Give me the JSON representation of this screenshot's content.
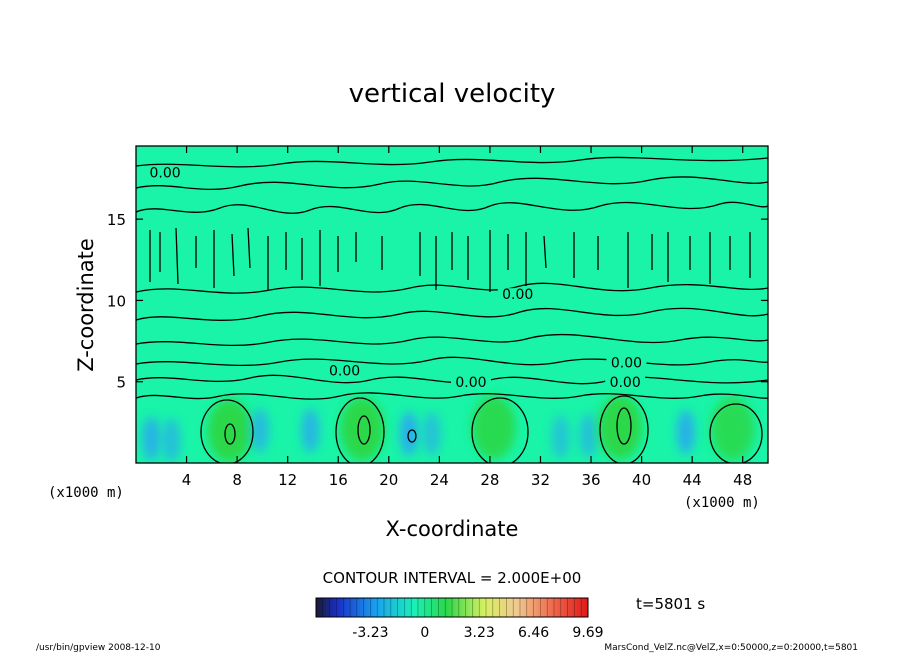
{
  "chart_data": {
    "type": "heatmap",
    "title": "vertical velocity",
    "xlabel": "X-coordinate",
    "ylabel": "Z-coordinate",
    "x_unit_left": "(x1000 m)",
    "x_unit_right": "(x1000 m)",
    "xlim": [
      0,
      50
    ],
    "ylim": [
      0,
      19.5
    ],
    "x_ticks": [
      "4",
      "8",
      "12",
      "16",
      "20",
      "24",
      "28",
      "32",
      "36",
      "40",
      "44",
      "48"
    ],
    "x_tick_values": [
      4,
      8,
      12,
      16,
      20,
      24,
      28,
      32,
      36,
      40,
      44,
      48
    ],
    "y_ticks": [
      "5",
      "10",
      "15"
    ],
    "y_tick_values": [
      5,
      10,
      15
    ],
    "contour_labels": [
      {
        "text": "0.00",
        "x": 2.3,
        "z": 17.7
      },
      {
        "text": "0.00",
        "x": 30.2,
        "z": 10.2
      },
      {
        "text": "0.00",
        "x": 16.5,
        "z": 5.5
      },
      {
        "text": "0.00",
        "x": 26.5,
        "z": 4.8
      },
      {
        "text": "0.00",
        "x": 38.8,
        "z": 6.0
      },
      {
        "text": "0.00",
        "x": 38.7,
        "z": 4.8
      }
    ],
    "cells": [
      {
        "x": 1.2,
        "z": 1.5,
        "v": -1.8
      },
      {
        "x": 2.8,
        "z": 1.4,
        "v": -1.2
      },
      {
        "x": 7.4,
        "z": 2.0,
        "v": 2.6
      },
      {
        "x": 9.8,
        "z": 2.0,
        "v": -1.4
      },
      {
        "x": 13.8,
        "z": 2.0,
        "v": -1.6
      },
      {
        "x": 17.9,
        "z": 2.1,
        "v": 2.4
      },
      {
        "x": 21.6,
        "z": 1.8,
        "v": -2.0
      },
      {
        "x": 23.4,
        "z": 1.8,
        "v": -1.0
      },
      {
        "x": 28.3,
        "z": 2.2,
        "v": 2.0
      },
      {
        "x": 33.6,
        "z": 1.6,
        "v": -0.9
      },
      {
        "x": 35.8,
        "z": 1.7,
        "v": -1.1
      },
      {
        "x": 38.3,
        "z": 2.2,
        "v": 2.6
      },
      {
        "x": 43.5,
        "z": 1.9,
        "v": -1.9
      },
      {
        "x": 47.2,
        "z": 2.1,
        "v": 1.8
      }
    ],
    "contour_interval_text": "CONTOUR INTERVAL = 2.000E+00",
    "colorbar": {
      "ticks": [
        "-3.23",
        "0",
        "3.23",
        "6.46",
        "9.69"
      ],
      "tick_values": [
        -3.23,
        0,
        3.23,
        6.46,
        9.69
      ],
      "range": [
        -6.46,
        9.69
      ]
    },
    "time_label": "t=5801 s",
    "colors": {
      "background_field": "#19f4a8",
      "positive": "#2ad84a",
      "negative": "#2aa8f0"
    }
  },
  "footer": {
    "left": "/usr/bin/gpview  2008-12-10",
    "right": "MarsCond_VelZ.nc@VelZ,x=0:50000,z=0:20000,t=5801"
  }
}
